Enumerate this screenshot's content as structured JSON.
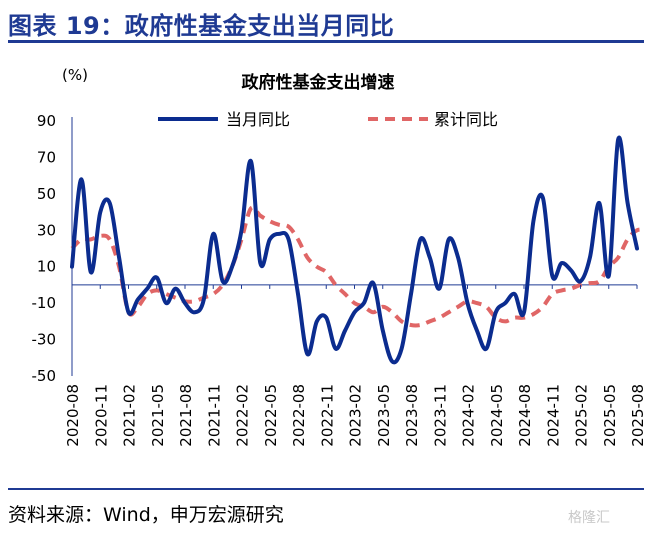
{
  "figure": {
    "title": "图表 19：政府性基金支出当月同比",
    "source": "资料来源：Wind，申万宏源研究",
    "watermark": "格隆汇"
  },
  "chart_data": {
    "type": "line",
    "title": "政府性基金支出增速",
    "ylabel": "(%)",
    "ylim": [
      -50,
      90
    ],
    "yticks": [
      90,
      70,
      50,
      30,
      10,
      -10,
      -30,
      -50
    ],
    "xticks": [
      "2020-08",
      "2020-11",
      "2021-02",
      "2021-05",
      "2021-08",
      "2021-11",
      "2022-02",
      "2022-05",
      "2022-08",
      "2022-11",
      "2023-02",
      "2023-05",
      "2023-08",
      "2023-11",
      "2024-02",
      "2024-05",
      "2024-08",
      "2024-11",
      "2025-02",
      "2025-05",
      "2025-08"
    ],
    "legend_position": "top",
    "colors": {
      "monthly": "#0B2C8F",
      "cumulative": "#E06666",
      "axis": "#1F3A93"
    },
    "series": [
      {
        "name": "当月同比",
        "style": "solid",
        "values": [
          10,
          58,
          7,
          40,
          45,
          15,
          -15,
          -8,
          -2,
          4,
          -10,
          -2,
          -10,
          -15,
          -8,
          28,
          2,
          10,
          30,
          68,
          12,
          25,
          28,
          25,
          -5,
          -38,
          -20,
          -18,
          -35,
          -25,
          -15,
          -10,
          1,
          -25,
          -42,
          -35,
          -5,
          25,
          15,
          -2,
          25,
          15,
          -10,
          -25,
          -35,
          -15,
          -10,
          -5,
          -15,
          35,
          48,
          5,
          12,
          8,
          2,
          15,
          45,
          5,
          80,
          45,
          20
        ]
      },
      {
        "name": "累计同比",
        "style": "dashed",
        "values": [
          20,
          25,
          25,
          27,
          25,
          10,
          -15,
          -12,
          -5,
          -3,
          -5,
          -7,
          -9,
          -9,
          -7,
          -5,
          0,
          10,
          25,
          42,
          38,
          35,
          33,
          32,
          25,
          15,
          10,
          7,
          0,
          -5,
          -10,
          -12,
          -15,
          -12,
          -15,
          -20,
          -22,
          -22,
          -20,
          -18,
          -15,
          -12,
          -9,
          -10,
          -12,
          -18,
          -20,
          -18,
          -18,
          -16,
          -12,
          -5,
          -3,
          -2,
          0,
          1,
          2,
          10,
          15,
          25,
          30,
          30
        ]
      }
    ]
  }
}
